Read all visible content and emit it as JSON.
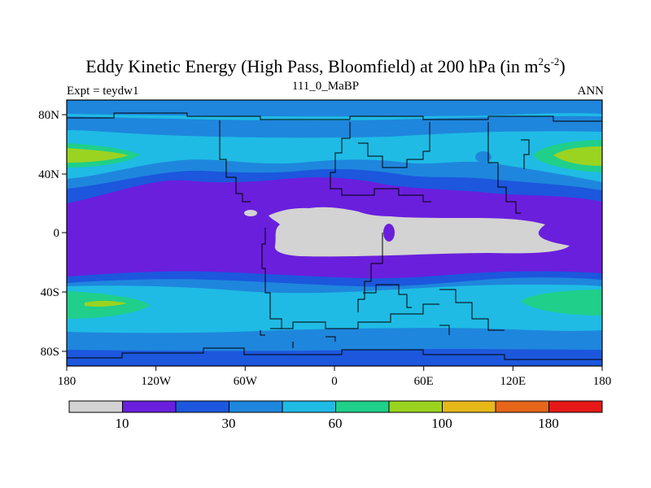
{
  "title_main": "Eddy Kinetic Energy (High Pass, Bloomfield) at 200 hPa (in m",
  "title_exp1": "2",
  "title_mid": "s",
  "title_exp2": "-2",
  "title_close": ")",
  "subtitle": "111_0_MaBP",
  "left_label": "Expt = teydw1",
  "right_label": "ANN",
  "chart_data": {
    "type": "heatmap",
    "title": "Eddy Kinetic Energy (High Pass, Bloomfield) at 200 hPa (in m2s-2)",
    "subtitle": "111_0_MaBP",
    "xlim": [
      -180,
      180
    ],
    "ylim": [
      -90,
      90
    ],
    "x_ticks": [
      "180",
      "120W",
      "60W",
      "0",
      "60E",
      "120E",
      "180"
    ],
    "y_ticks": [
      "80N",
      "40N",
      "0",
      "40S",
      "80S"
    ],
    "colorbar_labels": [
      "10",
      "30",
      "60",
      "100",
      "180"
    ],
    "colorbar_colors": [
      "#d3d3d3",
      "#6a1fdd",
      "#1c57dd",
      "#1f86dd",
      "#1fbbe5",
      "#1fcf8a",
      "#9bd321",
      "#e6b818",
      "#e6661a",
      "#e61818"
    ],
    "colors": {
      "lt10": "#d3d3d3",
      "c10_20": "#6a1fdd",
      "c20_30": "#1c57dd",
      "c30_45": "#1f86dd",
      "c45_60": "#1fbbe5",
      "c60_80": "#1fcf8a",
      "c80_100": "#9bd321"
    }
  }
}
